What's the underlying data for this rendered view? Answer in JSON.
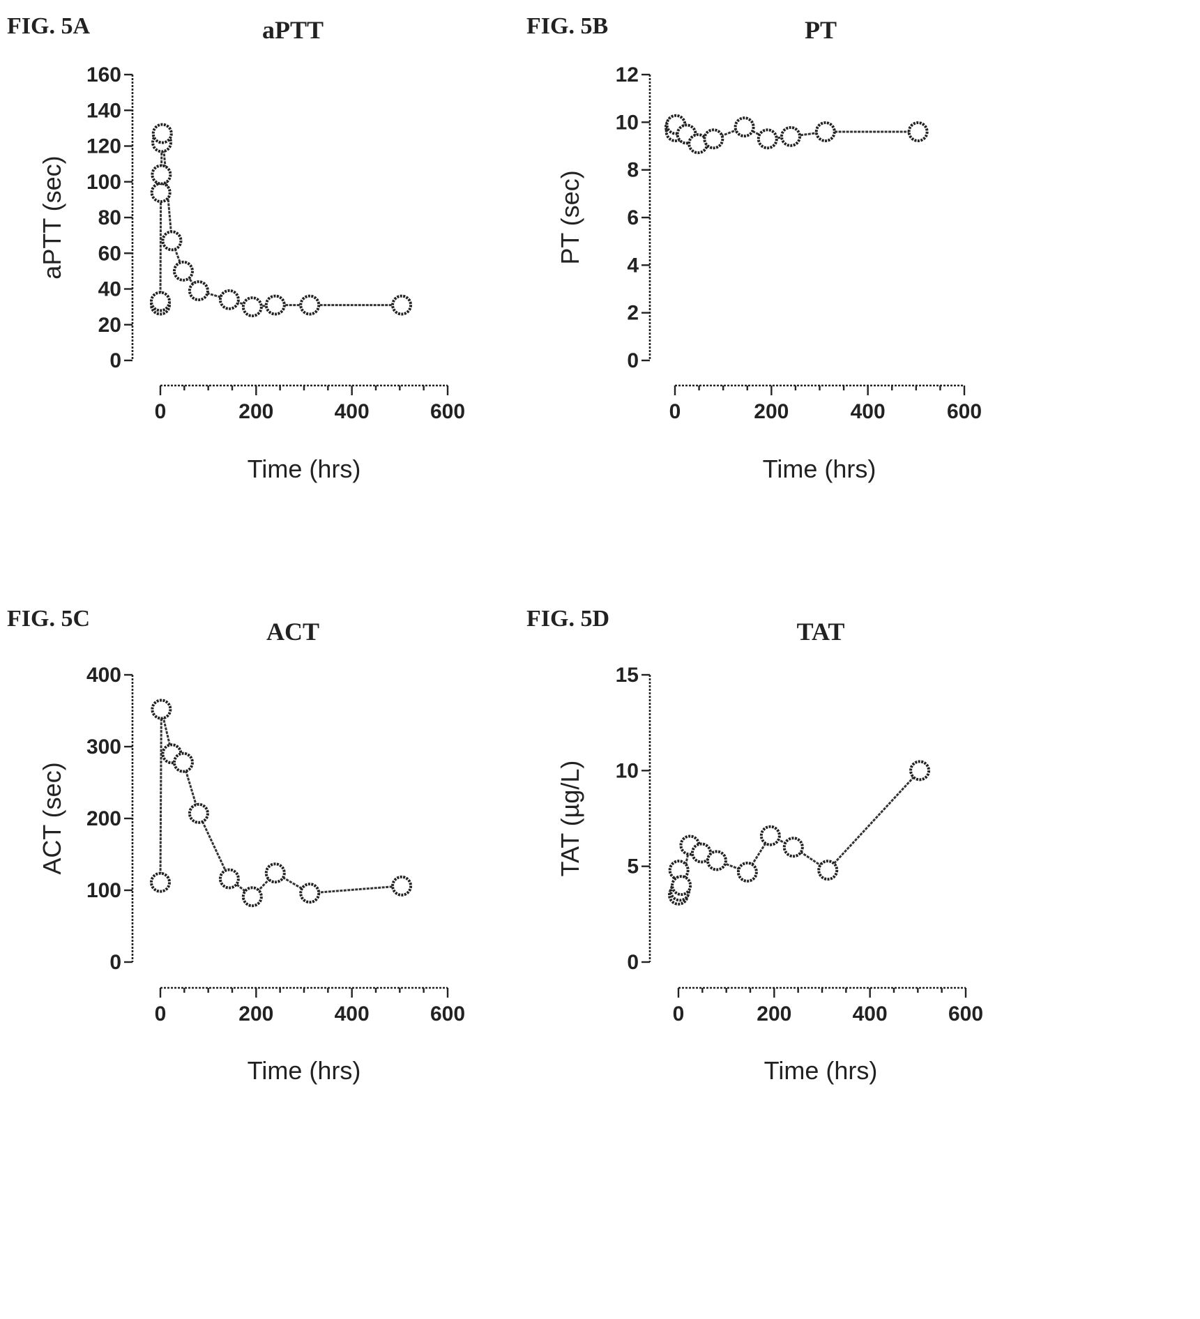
{
  "chart_data": [
    {
      "type": "line",
      "figure_label": "FIG. 5A",
      "title": "aPTT",
      "xlabel": "Time (hrs)",
      "ylabel": "aPTT (sec)",
      "xlim": [
        0,
        600
      ],
      "ylim": [
        0,
        160
      ],
      "xticks": [
        0,
        200,
        400,
        600
      ],
      "yticks": [
        0,
        20,
        40,
        60,
        80,
        100,
        120,
        140,
        160
      ],
      "x": [
        0,
        0,
        1,
        2,
        3,
        4,
        24,
        48,
        80,
        144,
        192,
        240,
        312,
        504
      ],
      "values": [
        31,
        33,
        94,
        104,
        122,
        127,
        67,
        50,
        39,
        34,
        30,
        31,
        31,
        31
      ]
    },
    {
      "type": "line",
      "figure_label": "FIG. 5B",
      "title": "PT",
      "xlabel": "Time (hrs)",
      "ylabel": "PT (sec)",
      "xlim": [
        0,
        600
      ],
      "ylim": [
        0,
        12
      ],
      "xticks": [
        0,
        200,
        400,
        600
      ],
      "yticks": [
        0,
        2,
        4,
        6,
        8,
        10,
        12
      ],
      "x": [
        0,
        1,
        2,
        24,
        48,
        80,
        144,
        192,
        240,
        312,
        504
      ],
      "values": [
        9.8,
        9.6,
        9.9,
        9.5,
        9.1,
        9.3,
        9.8,
        9.3,
        9.4,
        9.6,
        9.6
      ]
    },
    {
      "type": "line",
      "figure_label": "FIG. 5C",
      "title": "ACT",
      "xlabel": "Time (hrs)",
      "ylabel": "ACT (sec)",
      "xlim": [
        0,
        600
      ],
      "ylim": [
        0,
        400
      ],
      "xticks": [
        0,
        200,
        400,
        600
      ],
      "yticks": [
        0,
        100,
        200,
        300,
        400
      ],
      "x": [
        0,
        2,
        24,
        48,
        80,
        144,
        192,
        240,
        312,
        504
      ],
      "values": [
        111,
        352,
        290,
        278,
        207,
        116,
        91,
        124,
        96,
        106
      ]
    },
    {
      "type": "line",
      "figure_label": "FIG. 5D",
      "title": "TAT",
      "xlabel": "Time (hrs)",
      "ylabel": "TAT (µg/L)",
      "xlim": [
        0,
        600
      ],
      "ylim": [
        0,
        15
      ],
      "xticks": [
        0,
        200,
        400,
        600
      ],
      "yticks": [
        0,
        5,
        10,
        15
      ],
      "x": [
        0,
        1,
        3,
        6,
        24,
        48,
        80,
        144,
        192,
        240,
        312,
        504
      ],
      "values": [
        3.5,
        4.8,
        3.7,
        4.0,
        6.1,
        5.7,
        5.3,
        4.7,
        6.6,
        6.0,
        4.8,
        10.0
      ]
    }
  ]
}
